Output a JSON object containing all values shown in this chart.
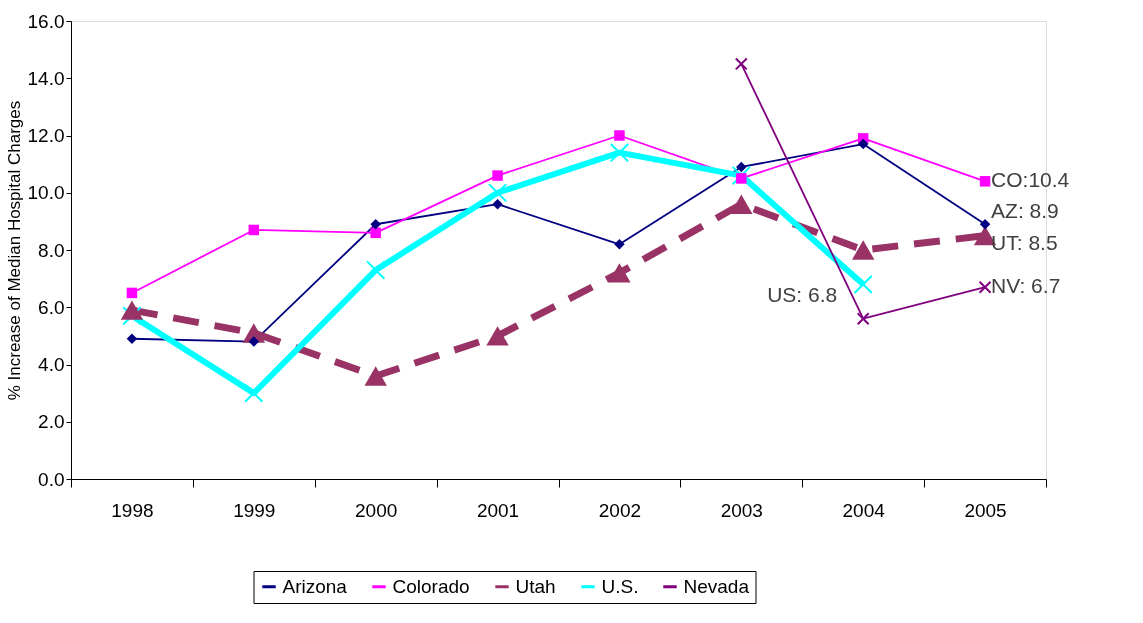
{
  "chart_data": {
    "type": "line",
    "ylabel": "% Increase of Median Hospital Charges",
    "categories": [
      "1998",
      "1999",
      "2000",
      "2001",
      "2002",
      "2003",
      "2004",
      "2005"
    ],
    "ylim": [
      0,
      16
    ],
    "yticks": [
      {
        "value": 0,
        "label": "0.0"
      },
      {
        "value": 2,
        "label": "2.0"
      },
      {
        "value": 4,
        "label": "4.0"
      },
      {
        "value": 6,
        "label": "6.0"
      },
      {
        "value": 8,
        "label": "8.0"
      },
      {
        "value": 10,
        "label": "10.0"
      },
      {
        "value": 12,
        "label": "12.0"
      },
      {
        "value": 14,
        "label": "14.0"
      },
      {
        "value": 16,
        "label": "16.0"
      }
    ],
    "grid": false,
    "legend": "bottom",
    "series": [
      {
        "name": "Arizona",
        "color": "#000080",
        "marker": "diamond",
        "line_style": "solid",
        "values": [
          4.9,
          4.8,
          8.9,
          9.6,
          8.2,
          10.9,
          11.7,
          8.9
        ]
      },
      {
        "name": "Colorado",
        "color": "#ff00ff",
        "marker": "square",
        "line_style": "solid",
        "values": [
          6.5,
          8.7,
          8.6,
          10.6,
          12.0,
          10.5,
          11.9,
          10.4
        ]
      },
      {
        "name": "Utah",
        "color": "#993366",
        "marker": "triangle",
        "line_style": "dashed",
        "values": [
          5.9,
          5.1,
          3.6,
          5.0,
          7.2,
          9.6,
          8.0,
          8.5
        ]
      },
      {
        "name": "U.S.",
        "color": "#00ffff",
        "marker": "cross",
        "line_style": "solid",
        "values": [
          5.7,
          3.0,
          7.3,
          10.0,
          11.4,
          10.6,
          6.8,
          null
        ]
      },
      {
        "name": "Nevada",
        "color": "#800080",
        "marker": "cross",
        "line_style": "solid",
        "values": [
          null,
          null,
          null,
          null,
          null,
          14.5,
          5.6,
          6.7
        ]
      }
    ],
    "annotations": [
      {
        "text": "CO:10.4",
        "x": "2005",
        "y": 10.4
      },
      {
        "text": "AZ: 8.9",
        "x": "2005",
        "y": 8.9
      },
      {
        "text": "UT: 8.5",
        "x": "2005",
        "y": 8.5
      },
      {
        "text": "NV: 6.7",
        "x": "2005",
        "y": 6.7
      },
      {
        "text": "US: 6.8",
        "x": "2004",
        "y": 6.8
      }
    ]
  }
}
